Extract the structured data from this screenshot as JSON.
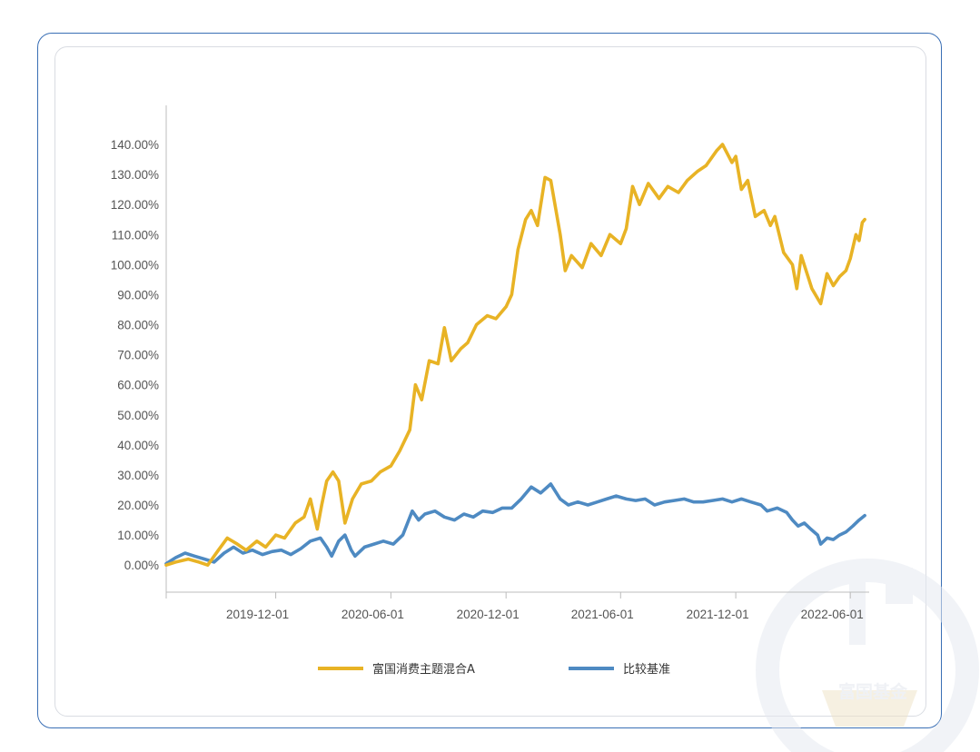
{
  "colors": {
    "frame": "#3a6fb5",
    "fund": "#e8b325",
    "benchmark": "#4e8ac2",
    "axis": "#bcbcbc"
  },
  "watermark": {
    "text": "富国基金"
  },
  "chart_data": {
    "type": "line",
    "title": "",
    "xlabel": "",
    "ylabel": "",
    "x_ticks": [
      "2019-12-01",
      "2020-06-01",
      "2020-12-01",
      "2021-06-01",
      "2021-12-01",
      "2022-06-01"
    ],
    "y_ticks": [
      "0.00%",
      "10.00%",
      "20.00%",
      "30.00%",
      "40.00%",
      "50.00%",
      "60.00%",
      "70.00%",
      "80.00%",
      "90.00%",
      "100.00%",
      "110.00%",
      "120.00%",
      "130.00%",
      "140.00%"
    ],
    "ylim": [
      -9,
      153
    ],
    "xlim": [
      "2019-06-10",
      "2022-07-01"
    ],
    "grid": false,
    "legend_position": "bottom",
    "series": [
      {
        "name": "富国消费主题混合A",
        "color": "#e8b325",
        "points": [
          [
            "2019-06-10",
            0
          ],
          [
            "2019-06-25",
            1
          ],
          [
            "2019-07-15",
            2
          ],
          [
            "2019-08-01",
            1
          ],
          [
            "2019-08-15",
            0
          ],
          [
            "2019-09-01",
            5
          ],
          [
            "2019-09-15",
            9
          ],
          [
            "2019-10-01",
            7
          ],
          [
            "2019-10-15",
            5
          ],
          [
            "2019-11-01",
            8
          ],
          [
            "2019-11-15",
            6
          ],
          [
            "2019-12-01",
            10
          ],
          [
            "2019-12-15",
            9
          ],
          [
            "2020-01-01",
            14
          ],
          [
            "2020-01-15",
            16
          ],
          [
            "2020-01-25",
            22
          ],
          [
            "2020-02-05",
            12
          ],
          [
            "2020-02-12",
            20
          ],
          [
            "2020-02-20",
            28
          ],
          [
            "2020-03-01",
            31
          ],
          [
            "2020-03-10",
            28
          ],
          [
            "2020-03-20",
            14
          ],
          [
            "2020-04-01",
            22
          ],
          [
            "2020-04-15",
            27
          ],
          [
            "2020-05-01",
            28
          ],
          [
            "2020-05-15",
            31
          ],
          [
            "2020-06-01",
            33
          ],
          [
            "2020-06-15",
            38
          ],
          [
            "2020-07-01",
            45
          ],
          [
            "2020-07-10",
            60
          ],
          [
            "2020-07-20",
            55
          ],
          [
            "2020-08-01",
            68
          ],
          [
            "2020-08-15",
            67
          ],
          [
            "2020-08-25",
            79
          ],
          [
            "2020-09-05",
            68
          ],
          [
            "2020-09-20",
            72
          ],
          [
            "2020-10-01",
            74
          ],
          [
            "2020-10-15",
            80
          ],
          [
            "2020-11-01",
            83
          ],
          [
            "2020-11-15",
            82
          ],
          [
            "2020-12-01",
            86
          ],
          [
            "2020-12-10",
            90
          ],
          [
            "2020-12-20",
            105
          ],
          [
            "2021-01-01",
            115
          ],
          [
            "2021-01-10",
            118
          ],
          [
            "2021-01-20",
            113
          ],
          [
            "2021-02-01",
            129
          ],
          [
            "2021-02-10",
            128
          ],
          [
            "2021-02-25",
            110
          ],
          [
            "2021-03-05",
            98
          ],
          [
            "2021-03-15",
            103
          ],
          [
            "2021-04-01",
            99
          ],
          [
            "2021-04-15",
            107
          ],
          [
            "2021-05-01",
            103
          ],
          [
            "2021-05-15",
            110
          ],
          [
            "2021-06-01",
            107
          ],
          [
            "2021-06-10",
            112
          ],
          [
            "2021-06-20",
            126
          ],
          [
            "2021-07-01",
            120
          ],
          [
            "2021-07-15",
            127
          ],
          [
            "2021-08-01",
            122
          ],
          [
            "2021-08-15",
            126
          ],
          [
            "2021-09-01",
            124
          ],
          [
            "2021-09-15",
            128
          ],
          [
            "2021-10-01",
            131
          ],
          [
            "2021-10-15",
            133
          ],
          [
            "2021-11-01",
            138
          ],
          [
            "2021-11-10",
            140
          ],
          [
            "2021-11-25",
            134
          ],
          [
            "2021-12-01",
            136
          ],
          [
            "2021-12-10",
            125
          ],
          [
            "2021-12-20",
            128
          ],
          [
            "2022-01-01",
            116
          ],
          [
            "2022-01-15",
            118
          ],
          [
            "2022-01-25",
            113
          ],
          [
            "2022-02-01",
            116
          ],
          [
            "2022-02-15",
            104
          ],
          [
            "2022-03-01",
            100
          ],
          [
            "2022-03-08",
            92
          ],
          [
            "2022-03-15",
            103
          ],
          [
            "2022-04-01",
            92
          ],
          [
            "2022-04-15",
            87
          ],
          [
            "2022-04-25",
            97
          ],
          [
            "2022-05-05",
            93
          ],
          [
            "2022-05-15",
            96
          ],
          [
            "2022-05-25",
            98
          ],
          [
            "2022-06-01",
            102
          ],
          [
            "2022-06-10",
            110
          ],
          [
            "2022-06-15",
            108
          ],
          [
            "2022-06-20",
            114
          ],
          [
            "2022-06-24",
            115
          ]
        ]
      },
      {
        "name": "比较基准",
        "color": "#4e8ac2",
        "points": [
          [
            "2019-06-10",
            0.5
          ],
          [
            "2019-06-25",
            2.5
          ],
          [
            "2019-07-10",
            4
          ],
          [
            "2019-07-25",
            3
          ],
          [
            "2019-08-10",
            2
          ],
          [
            "2019-08-25",
            1
          ],
          [
            "2019-09-10",
            4
          ],
          [
            "2019-09-25",
            6
          ],
          [
            "2019-10-10",
            4
          ],
          [
            "2019-10-25",
            5
          ],
          [
            "2019-11-10",
            3.5
          ],
          [
            "2019-11-25",
            4.5
          ],
          [
            "2019-12-10",
            5
          ],
          [
            "2019-12-25",
            3.5
          ],
          [
            "2020-01-10",
            5.5
          ],
          [
            "2020-01-25",
            8
          ],
          [
            "2020-02-10",
            9
          ],
          [
            "2020-02-20",
            6
          ],
          [
            "2020-02-28",
            3
          ],
          [
            "2020-03-10",
            8
          ],
          [
            "2020-03-20",
            10
          ],
          [
            "2020-03-30",
            5
          ],
          [
            "2020-04-05",
            3
          ],
          [
            "2020-04-20",
            6
          ],
          [
            "2020-05-05",
            7
          ],
          [
            "2020-05-20",
            8
          ],
          [
            "2020-06-05",
            7
          ],
          [
            "2020-06-20",
            10
          ],
          [
            "2020-07-05",
            18
          ],
          [
            "2020-07-15",
            15
          ],
          [
            "2020-07-25",
            17
          ],
          [
            "2020-08-10",
            18
          ],
          [
            "2020-08-25",
            16
          ],
          [
            "2020-09-10",
            15
          ],
          [
            "2020-09-25",
            17
          ],
          [
            "2020-10-10",
            16
          ],
          [
            "2020-10-25",
            18
          ],
          [
            "2020-11-10",
            17.5
          ],
          [
            "2020-11-25",
            19
          ],
          [
            "2020-12-10",
            19
          ],
          [
            "2020-12-25",
            22
          ],
          [
            "2021-01-10",
            26
          ],
          [
            "2021-01-25",
            24
          ],
          [
            "2021-02-10",
            27
          ],
          [
            "2021-02-25",
            22
          ],
          [
            "2021-03-10",
            20
          ],
          [
            "2021-03-25",
            21
          ],
          [
            "2021-04-10",
            20
          ],
          [
            "2021-04-25",
            21
          ],
          [
            "2021-05-10",
            22
          ],
          [
            "2021-05-25",
            23
          ],
          [
            "2021-06-10",
            22
          ],
          [
            "2021-06-25",
            21.5
          ],
          [
            "2021-07-10",
            22
          ],
          [
            "2021-07-25",
            20
          ],
          [
            "2021-08-10",
            21
          ],
          [
            "2021-08-25",
            21.5
          ],
          [
            "2021-09-10",
            22
          ],
          [
            "2021-09-25",
            21
          ],
          [
            "2021-10-10",
            21
          ],
          [
            "2021-10-25",
            21.5
          ],
          [
            "2021-11-10",
            22
          ],
          [
            "2021-11-25",
            21
          ],
          [
            "2021-12-10",
            22
          ],
          [
            "2021-12-25",
            21
          ],
          [
            "2022-01-10",
            20
          ],
          [
            "2022-01-20",
            18
          ],
          [
            "2022-02-05",
            19
          ],
          [
            "2022-02-20",
            17.5
          ],
          [
            "2022-03-01",
            15
          ],
          [
            "2022-03-10",
            13
          ],
          [
            "2022-03-20",
            14
          ],
          [
            "2022-03-30",
            12
          ],
          [
            "2022-04-10",
            10
          ],
          [
            "2022-04-15",
            7
          ],
          [
            "2022-04-25",
            9
          ],
          [
            "2022-05-05",
            8.5
          ],
          [
            "2022-05-15",
            10
          ],
          [
            "2022-05-25",
            11
          ],
          [
            "2022-06-05",
            13
          ],
          [
            "2022-06-15",
            15
          ],
          [
            "2022-06-24",
            16.5
          ]
        ]
      }
    ]
  }
}
